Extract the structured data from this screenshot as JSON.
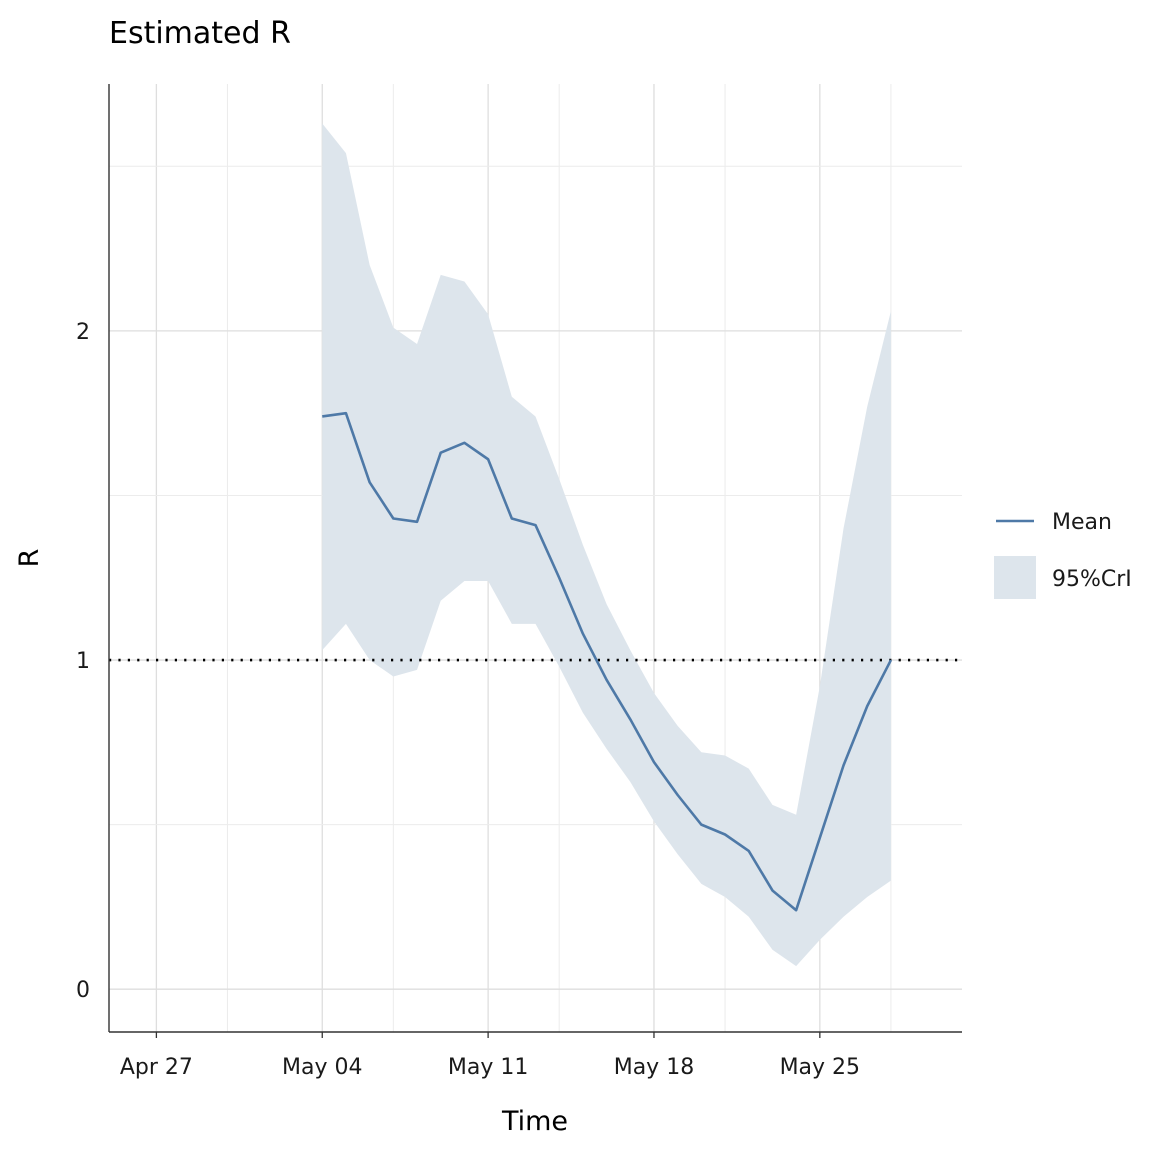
{
  "chart_data": {
    "type": "line",
    "title": "Estimated R",
    "xlabel": "Time",
    "ylabel": "R",
    "xlim": [
      "2020-04-25",
      "2020-05-31"
    ],
    "ylim": [
      -0.13,
      2.75
    ],
    "x_ticks": [
      {
        "date": "2020-04-27",
        "label": "Apr 27"
      },
      {
        "date": "2020-05-04",
        "label": "May 04"
      },
      {
        "date": "2020-05-11",
        "label": "May 11"
      },
      {
        "date": "2020-05-18",
        "label": "May 18"
      },
      {
        "date": "2020-05-25",
        "label": "May 25"
      }
    ],
    "y_ticks": [
      0,
      1,
      2
    ],
    "reference_line": {
      "y": 1,
      "style": "dotted",
      "color": "#000000"
    },
    "grid": true,
    "legend_position": "right",
    "colors": {
      "mean": "#4e79a7",
      "band": "#dde5ec"
    },
    "series": [
      {
        "name": "Mean",
        "kind": "line",
        "x": [
          "2020-05-04",
          "2020-05-05",
          "2020-05-06",
          "2020-05-07",
          "2020-05-08",
          "2020-05-09",
          "2020-05-10",
          "2020-05-11",
          "2020-05-12",
          "2020-05-13",
          "2020-05-14",
          "2020-05-15",
          "2020-05-16",
          "2020-05-17",
          "2020-05-18",
          "2020-05-19",
          "2020-05-20",
          "2020-05-21",
          "2020-05-22",
          "2020-05-23",
          "2020-05-24",
          "2020-05-25",
          "2020-05-26",
          "2020-05-27",
          "2020-05-28"
        ],
        "values": [
          1.74,
          1.75,
          1.54,
          1.43,
          1.42,
          1.63,
          1.66,
          1.61,
          1.43,
          1.41,
          1.25,
          1.08,
          0.94,
          0.82,
          0.69,
          0.59,
          0.5,
          0.47,
          0.42,
          0.3,
          0.24,
          0.46,
          0.68,
          0.86,
          1.0
        ]
      },
      {
        "name": "95%CrI",
        "kind": "band",
        "x": [
          "2020-05-04",
          "2020-05-05",
          "2020-05-06",
          "2020-05-07",
          "2020-05-08",
          "2020-05-09",
          "2020-05-10",
          "2020-05-11",
          "2020-05-12",
          "2020-05-13",
          "2020-05-14",
          "2020-05-15",
          "2020-05-16",
          "2020-05-17",
          "2020-05-18",
          "2020-05-19",
          "2020-05-20",
          "2020-05-21",
          "2020-05-22",
          "2020-05-23",
          "2020-05-24",
          "2020-05-25",
          "2020-05-26",
          "2020-05-27",
          "2020-05-28"
        ],
        "lower": [
          1.03,
          1.11,
          1.0,
          0.95,
          0.97,
          1.18,
          1.24,
          1.24,
          1.11,
          1.11,
          0.98,
          0.84,
          0.73,
          0.63,
          0.51,
          0.41,
          0.32,
          0.28,
          0.22,
          0.12,
          0.07,
          0.15,
          0.22,
          0.28,
          0.33
        ],
        "upper": [
          2.63,
          2.54,
          2.2,
          2.01,
          1.96,
          2.17,
          2.15,
          2.05,
          1.8,
          1.74,
          1.55,
          1.35,
          1.17,
          1.03,
          0.9,
          0.8,
          0.72,
          0.71,
          0.67,
          0.56,
          0.53,
          0.92,
          1.4,
          1.77,
          2.06
        ]
      }
    ]
  }
}
